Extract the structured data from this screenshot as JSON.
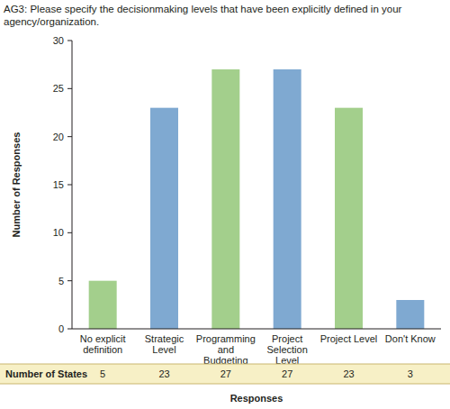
{
  "chart_data": {
    "type": "bar",
    "title": "AG3: Please specify the decisionmaking levels that have been explicitly defined in your agency/organization.",
    "categories": [
      "No explicit definition",
      "Strategic Level",
      "Programming and Budgeting Level",
      "Project Selection Level",
      "Project Level",
      "Don't Know"
    ],
    "values": [
      5,
      23,
      27,
      27,
      23,
      3
    ],
    "colors": [
      "#a3cf8c",
      "#7fa9d1",
      "#a3cf8c",
      "#7fa9d1",
      "#a3cf8c",
      "#7fa9d1"
    ],
    "y_label": "Number of Responses",
    "x_label": "Responses",
    "table_label": "Number of States",
    "data_labels": true,
    "ylim": [
      0,
      30
    ],
    "yticks": [
      0,
      5,
      10,
      15,
      20,
      25,
      30
    ],
    "grid": false
  }
}
